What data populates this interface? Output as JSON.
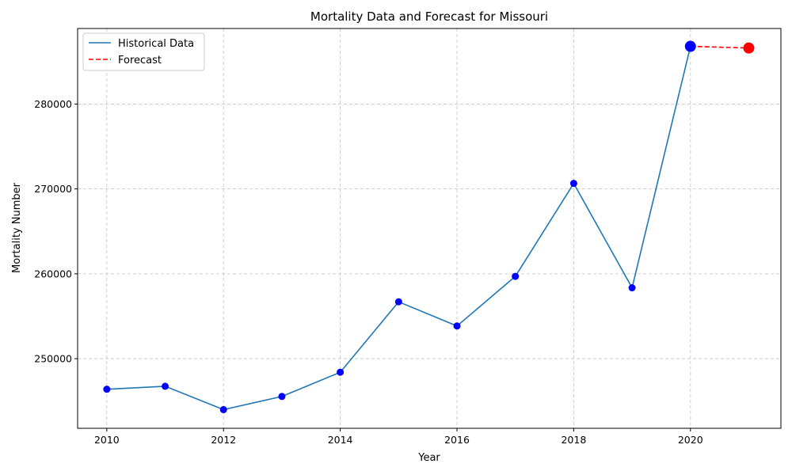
{
  "chart_data": {
    "type": "line",
    "title": "Mortality Data and Forecast for Missouri",
    "xlabel": "Year",
    "ylabel": "Mortality Number",
    "xlim": [
      2009.5,
      2021.55
    ],
    "ylim": [
      241800,
      288900
    ],
    "xticks": [
      2010,
      2012,
      2014,
      2016,
      2018,
      2020
    ],
    "yticks": [
      250000,
      260000,
      270000,
      280000
    ],
    "grid": true,
    "legend_position": "top-left",
    "series": [
      {
        "name": "Historical Data",
        "style": "solid",
        "color": "#1f77b4",
        "marker_color": "#0000ff",
        "x": [
          2010,
          2011,
          2012,
          2013,
          2014,
          2015,
          2016,
          2017,
          2018,
          2019,
          2020
        ],
        "y": [
          246400,
          246750,
          244000,
          245550,
          248400,
          256700,
          253850,
          259700,
          270650,
          258350,
          286800
        ]
      },
      {
        "name": "Forecast",
        "style": "dashed",
        "color": "#ff0000",
        "x": [
          2020,
          2021
        ],
        "y": [
          286800,
          286600
        ]
      }
    ],
    "highlight_points": [
      {
        "x": 2020,
        "y": 286800,
        "color": "#0000ff"
      },
      {
        "x": 2021,
        "y": 286600,
        "color": "#ff0000"
      }
    ]
  }
}
